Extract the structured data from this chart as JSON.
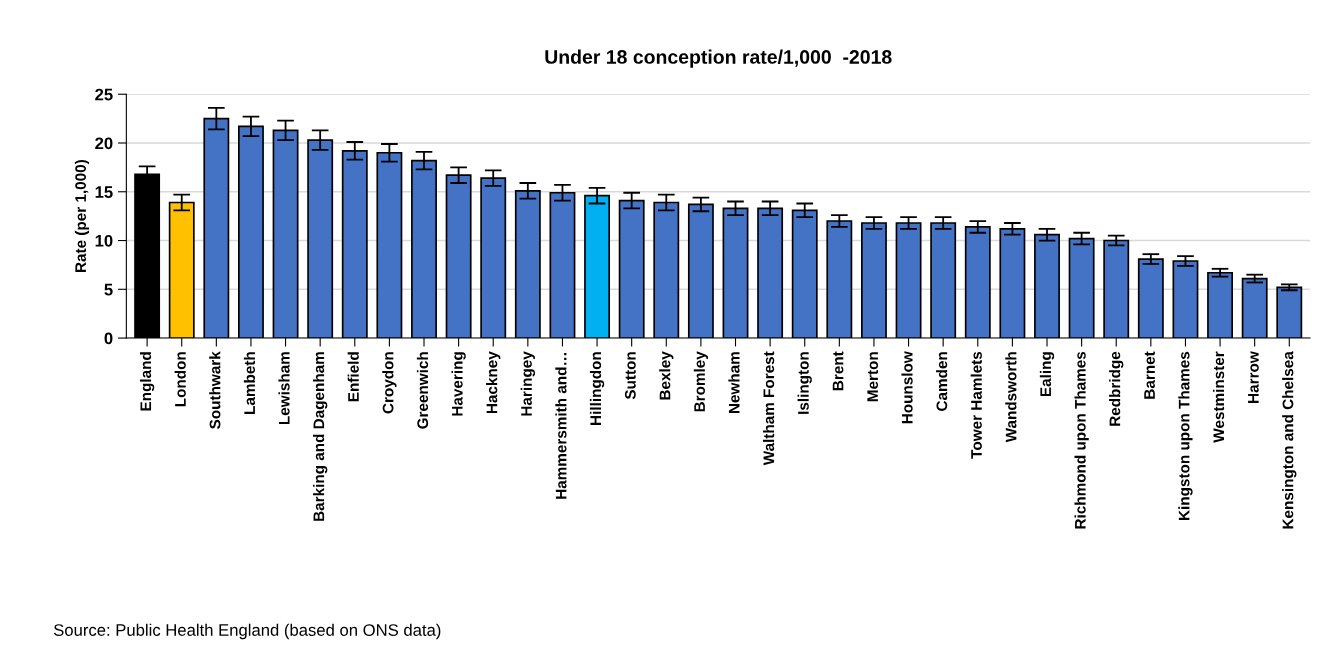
{
  "chart_data": {
    "type": "bar",
    "title": "Under 18 conception rate/1,000  -2018",
    "ylabel": "Rate (per 1,000)",
    "categories": [
      "England",
      "London",
      "Southwark",
      "Lambeth",
      "Lewisham",
      "Barking and Dagenham",
      "Enfield",
      "Croydon",
      "Greenwich",
      "Havering",
      "Hackney",
      "Haringey",
      "Hammersmith and…",
      "Hillingdon",
      "Sutton",
      "Bexley",
      "Bromley",
      "Newham",
      "Waltham Forest",
      "Islington",
      "Brent",
      "Merton",
      "Hounslow",
      "Camden",
      "Tower Hamlets",
      "Wandsworth",
      "Ealing",
      "Richmond upon Thames",
      "Redbridge",
      "Barnet",
      "Kingston upon Thames",
      "Westminster",
      "Harrow",
      "Kensington and Chelsea"
    ],
    "values": [
      16.8,
      13.9,
      22.5,
      21.7,
      21.3,
      20.3,
      19.2,
      19.0,
      18.2,
      16.7,
      16.4,
      15.1,
      14.9,
      14.6,
      14.1,
      13.9,
      13.7,
      13.3,
      13.3,
      13.1,
      12.0,
      11.8,
      11.8,
      11.8,
      11.4,
      11.2,
      10.6,
      10.2,
      10.0,
      8.1,
      7.9,
      6.7,
      6.1,
      5.2
    ],
    "errors": [
      0.8,
      0.8,
      1.1,
      1.0,
      1.0,
      1.0,
      0.9,
      0.9,
      0.9,
      0.8,
      0.8,
      0.8,
      0.8,
      0.8,
      0.8,
      0.8,
      0.7,
      0.7,
      0.7,
      0.7,
      0.6,
      0.6,
      0.6,
      0.6,
      0.6,
      0.6,
      0.6,
      0.6,
      0.5,
      0.5,
      0.5,
      0.4,
      0.4,
      0.3
    ],
    "colors": [
      "#000000",
      "#ffc000",
      "#4472c4",
      "#4472c4",
      "#4472c4",
      "#4472c4",
      "#4472c4",
      "#4472c4",
      "#4472c4",
      "#4472c4",
      "#4472c4",
      "#4472c4",
      "#4472c4",
      "#00b0f0",
      "#4472c4",
      "#4472c4",
      "#4472c4",
      "#4472c4",
      "#4472c4",
      "#4472c4",
      "#4472c4",
      "#4472c4",
      "#4472c4",
      "#4472c4",
      "#4472c4",
      "#4472c4",
      "#4472c4",
      "#4472c4",
      "#4472c4",
      "#4472c4",
      "#4472c4",
      "#4472c4",
      "#4472c4",
      "#4472c4"
    ],
    "ylim": [
      0,
      25
    ],
    "yticks": [
      0,
      5,
      10,
      15,
      20,
      25
    ],
    "grid": "y",
    "legend": false,
    "annotations": [
      "Source: Public Health England (based on ONS data)"
    ]
  }
}
